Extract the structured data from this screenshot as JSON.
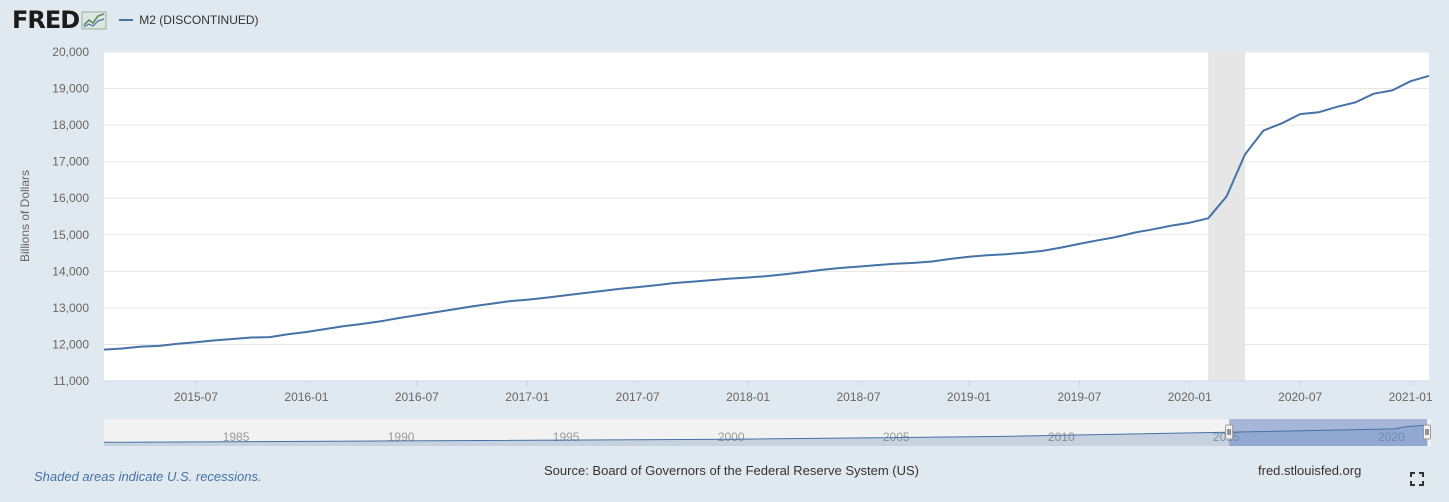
{
  "header": {
    "logo_text": "FRED",
    "logo_icon": "fred-chart-icon",
    "legend_label": "M2 (DISCONTINUED)",
    "series_color": "#4572a7"
  },
  "footer": {
    "recession_note": "Shaded areas indicate U.S. recessions.",
    "source": "Source: Board of Governors of the Federal Reserve System (US)",
    "site": "fred.stlouisfed.org",
    "fullscreen_icon": "fullscreen-icon"
  },
  "chart_data": {
    "type": "line",
    "title": "",
    "xlabel": "",
    "ylabel": "Billions of Dollars",
    "ylim": [
      11000,
      20000
    ],
    "xlim": [
      "2015-02",
      "2021-02"
    ],
    "y_ticks": [
      "11,000",
      "12,000",
      "13,000",
      "14,000",
      "15,000",
      "16,000",
      "17,000",
      "18,000",
      "19,000",
      "20,000"
    ],
    "x_ticks": [
      "2015-07",
      "2016-01",
      "2016-07",
      "2017-01",
      "2017-07",
      "2018-01",
      "2018-07",
      "2019-01",
      "2019-07",
      "2020-01",
      "2020-07",
      "2021-01"
    ],
    "grid": true,
    "recession": {
      "start": "2020-02",
      "end": "2020-04",
      "color": "#e6e6e6"
    },
    "series": [
      {
        "name": "M2 (DISCONTINUED)",
        "color": "#4572a7",
        "points": [
          [
            "2015-02",
            11860
          ],
          [
            "2015-03",
            11890
          ],
          [
            "2015-04",
            11940
          ],
          [
            "2015-05",
            11960
          ],
          [
            "2015-06",
            12020
          ],
          [
            "2015-07",
            12060
          ],
          [
            "2015-08",
            12110
          ],
          [
            "2015-09",
            12150
          ],
          [
            "2015-10",
            12190
          ],
          [
            "2015-11",
            12200
          ],
          [
            "2015-12",
            12280
          ],
          [
            "2016-01",
            12340
          ],
          [
            "2016-02",
            12420
          ],
          [
            "2016-03",
            12500
          ],
          [
            "2016-04",
            12560
          ],
          [
            "2016-05",
            12630
          ],
          [
            "2016-06",
            12720
          ],
          [
            "2016-07",
            12800
          ],
          [
            "2016-08",
            12880
          ],
          [
            "2016-09",
            12960
          ],
          [
            "2016-10",
            13040
          ],
          [
            "2016-11",
            13110
          ],
          [
            "2016-12",
            13180
          ],
          [
            "2017-01",
            13220
          ],
          [
            "2017-02",
            13280
          ],
          [
            "2017-03",
            13340
          ],
          [
            "2017-04",
            13400
          ],
          [
            "2017-05",
            13460
          ],
          [
            "2017-06",
            13520
          ],
          [
            "2017-07",
            13570
          ],
          [
            "2017-08",
            13620
          ],
          [
            "2017-09",
            13680
          ],
          [
            "2017-10",
            13720
          ],
          [
            "2017-11",
            13760
          ],
          [
            "2017-12",
            13800
          ],
          [
            "2018-01",
            13830
          ],
          [
            "2018-02",
            13870
          ],
          [
            "2018-03",
            13920
          ],
          [
            "2018-04",
            13980
          ],
          [
            "2018-05",
            14040
          ],
          [
            "2018-06",
            14090
          ],
          [
            "2018-07",
            14130
          ],
          [
            "2018-08",
            14170
          ],
          [
            "2018-09",
            14210
          ],
          [
            "2018-10",
            14230
          ],
          [
            "2018-11",
            14270
          ],
          [
            "2018-12",
            14340
          ],
          [
            "2019-01",
            14400
          ],
          [
            "2019-02",
            14440
          ],
          [
            "2019-03",
            14470
          ],
          [
            "2019-04",
            14510
          ],
          [
            "2019-05",
            14560
          ],
          [
            "2019-06",
            14650
          ],
          [
            "2019-07",
            14750
          ],
          [
            "2019-08",
            14850
          ],
          [
            "2019-09",
            14940
          ],
          [
            "2019-10",
            15060
          ],
          [
            "2019-11",
            15150
          ],
          [
            "2019-12",
            15250
          ],
          [
            "2020-01",
            15330
          ],
          [
            "2020-02",
            15450
          ],
          [
            "2020-03",
            16050
          ],
          [
            "2020-04",
            17200
          ],
          [
            "2020-05",
            17850
          ],
          [
            "2020-06",
            18050
          ],
          [
            "2020-07",
            18300
          ],
          [
            "2020-08",
            18350
          ],
          [
            "2020-09",
            18500
          ],
          [
            "2020-10",
            18620
          ],
          [
            "2020-11",
            18860
          ],
          [
            "2020-12",
            18950
          ],
          [
            "2021-01",
            19200
          ],
          [
            "2021-02",
            19350
          ]
        ]
      }
    ],
    "navigator": {
      "x_ticks": [
        "1985",
        "1990",
        "1995",
        "2000",
        "2005",
        "2010",
        "2015",
        "2020"
      ],
      "range_start_year": 1981,
      "range_end_year": 2021.2,
      "values": [
        [
          1981,
          1700
        ],
        [
          1990,
          3200
        ],
        [
          2000,
          4900
        ],
        [
          2008,
          7600
        ],
        [
          2015,
          12000
        ],
        [
          2020.1,
          15400
        ],
        [
          2020.4,
          17400
        ],
        [
          2021.1,
          19350
        ]
      ],
      "selected_start": "2015-02",
      "selected_end": "2021-02"
    }
  }
}
